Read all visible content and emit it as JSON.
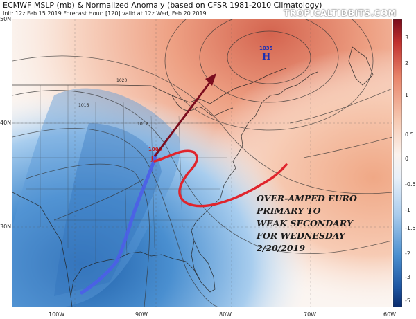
{
  "header": {
    "title": "ECMWF MSLP (mb) & Normalized Anomaly (based on CFSR 1981-2010 Climatology)",
    "subtitle": "Init: 12z Feb 15 2019   Forecast Hour: [120]   valid at 12z Wed, Feb 20 2019",
    "brand": "TROPICALTIDBITS.COM"
  },
  "axes": {
    "lat_labels": [
      "50N",
      "40N",
      "30N"
    ],
    "lon_labels": [
      "100W",
      "90W",
      "80W",
      "70W",
      "60W"
    ]
  },
  "colorbar": {
    "ticks": [
      "3",
      "2",
      "1",
      "0.5",
      "0",
      "-0.5",
      "-1",
      "-1.5",
      "-2",
      "-3",
      "-5"
    ]
  },
  "map_labels": {
    "high_value": "1035",
    "high_letter": "H",
    "low_value": "1004",
    "low_letter": "L",
    "isobar_labels": [
      "1020",
      "1016",
      "1012"
    ]
  },
  "annotation": {
    "lines": [
      "OVER-AMPED EURO",
      "PRIMARY TO",
      "WEAK SECONDARY",
      "FOR WEDNESDAY",
      "2/20/2019"
    ]
  },
  "colors": {
    "warm": "#e98a6e",
    "cold": "#2f77c2",
    "neutral": "#fbf7f3",
    "arrow": "#7b0d1e",
    "cold_front": "#4d5ee8",
    "secondary_track": "#e0242c",
    "high_letter": "#1d2fb3",
    "low_letter": "#c81d1d"
  }
}
